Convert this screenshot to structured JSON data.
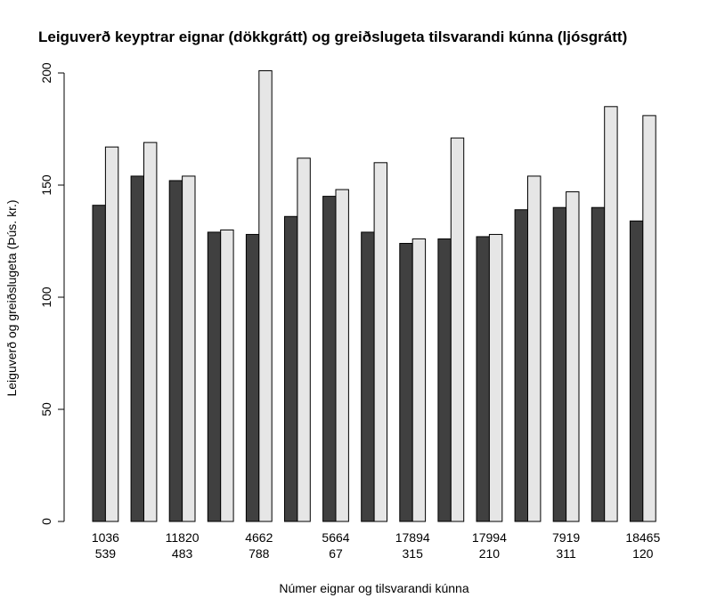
{
  "chart_data": {
    "type": "bar",
    "title": "Leiguverð keyptrar eignar (dökkgrátt) og greiðslugeta tilsvarandi kúnna (ljósgrátt)",
    "xlabel": "Númer eignar og tilsvarandi kúnna",
    "ylabel": "Leiguverð og greiðslugeta (Þús. kr.)",
    "ylim": [
      0,
      200
    ],
    "yticks": [
      "0",
      "50",
      "100",
      "150",
      "200"
    ],
    "grid": false,
    "legend": "none",
    "colors": {
      "dark": "#404040",
      "light": "#e6e6e6",
      "stroke": "#000000"
    },
    "groups": [
      {
        "property": "1036",
        "customer": "539",
        "show_label": true,
        "rent": 141,
        "capacity": 167
      },
      {
        "property": "",
        "customer": "",
        "show_label": false,
        "rent": 154,
        "capacity": 169
      },
      {
        "property": "11820",
        "customer": "483",
        "show_label": true,
        "rent": 152,
        "capacity": 154
      },
      {
        "property": "",
        "customer": "",
        "show_label": false,
        "rent": 129,
        "capacity": 130
      },
      {
        "property": "4662",
        "customer": "788",
        "show_label": true,
        "rent": 128,
        "capacity": 201
      },
      {
        "property": "",
        "customer": "",
        "show_label": false,
        "rent": 136,
        "capacity": 162
      },
      {
        "property": "5664",
        "customer": "67",
        "show_label": true,
        "rent": 145,
        "capacity": 148
      },
      {
        "property": "",
        "customer": "",
        "show_label": false,
        "rent": 129,
        "capacity": 160
      },
      {
        "property": "17894",
        "customer": "315",
        "show_label": true,
        "rent": 124,
        "capacity": 126
      },
      {
        "property": "",
        "customer": "",
        "show_label": false,
        "rent": 126,
        "capacity": 171
      },
      {
        "property": "17994",
        "customer": "210",
        "show_label": true,
        "rent": 127,
        "capacity": 128
      },
      {
        "property": "",
        "customer": "",
        "show_label": false,
        "rent": 139,
        "capacity": 154
      },
      {
        "property": "7919",
        "customer": "311",
        "show_label": true,
        "rent": 140,
        "capacity": 147
      },
      {
        "property": "",
        "customer": "",
        "show_label": false,
        "rent": 140,
        "capacity": 185
      },
      {
        "property": "18465",
        "customer": "120",
        "show_label": true,
        "rent": 134,
        "capacity": 181
      }
    ]
  }
}
